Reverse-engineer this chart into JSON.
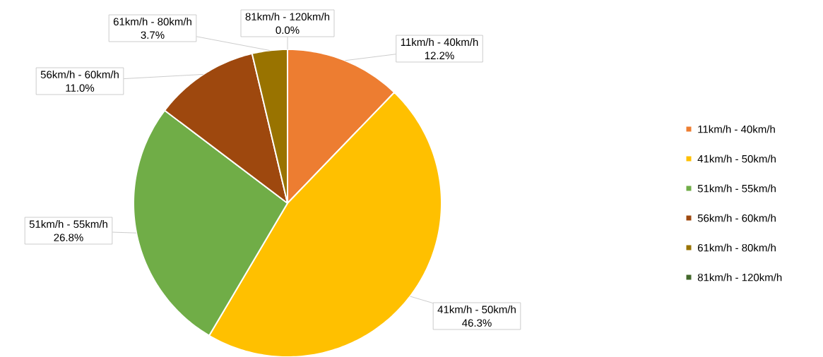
{
  "chart_data": {
    "type": "pie",
    "categories": [
      "11km/h - 40km/h",
      "41km/h - 50km/h",
      "51km/h - 55km/h",
      "56km/h - 60km/h",
      "61km/h - 80km/h",
      "81km/h - 120km/h"
    ],
    "values": [
      12.2,
      46.3,
      26.8,
      11.0,
      3.7,
      0.0
    ],
    "value_labels": [
      "12.2%",
      "46.3%",
      "26.8%",
      "11.0%",
      "3.7%",
      "0.0%"
    ],
    "colors": [
      "#ed7d31",
      "#ffc000",
      "#70ad47",
      "#9e480e",
      "#997300",
      "#43682b"
    ],
    "legend": "right"
  }
}
